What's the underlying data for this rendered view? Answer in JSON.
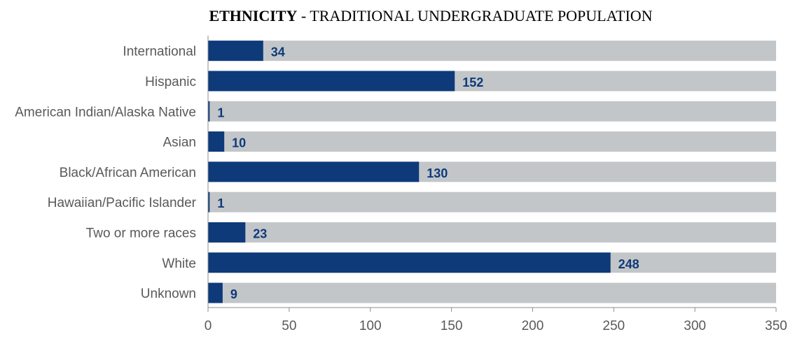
{
  "chart_data": {
    "type": "bar",
    "orientation": "horizontal",
    "title_bold": "ETHNICITY",
    "title_rest": " - TRADITIONAL UNDERGRADUATE POPULATION",
    "categories": [
      "International",
      "Hispanic",
      "American Indian/Alaska Native",
      "Asian",
      "Black/African American",
      "Hawaiian/Pacific Islander",
      "Two or more races",
      "White",
      "Unknown"
    ],
    "values": [
      34,
      152,
      1,
      10,
      130,
      1,
      23,
      248,
      9
    ],
    "background_value": 350,
    "xlim": [
      0,
      350
    ],
    "xticks": [
      0,
      50,
      100,
      150,
      200,
      250,
      300,
      350
    ],
    "grid": false,
    "legend": "none",
    "colors": {
      "bar": "#0e3a7a",
      "track": "#c3c6c8",
      "axis": "#8c8c8c",
      "label": "#595959"
    }
  }
}
